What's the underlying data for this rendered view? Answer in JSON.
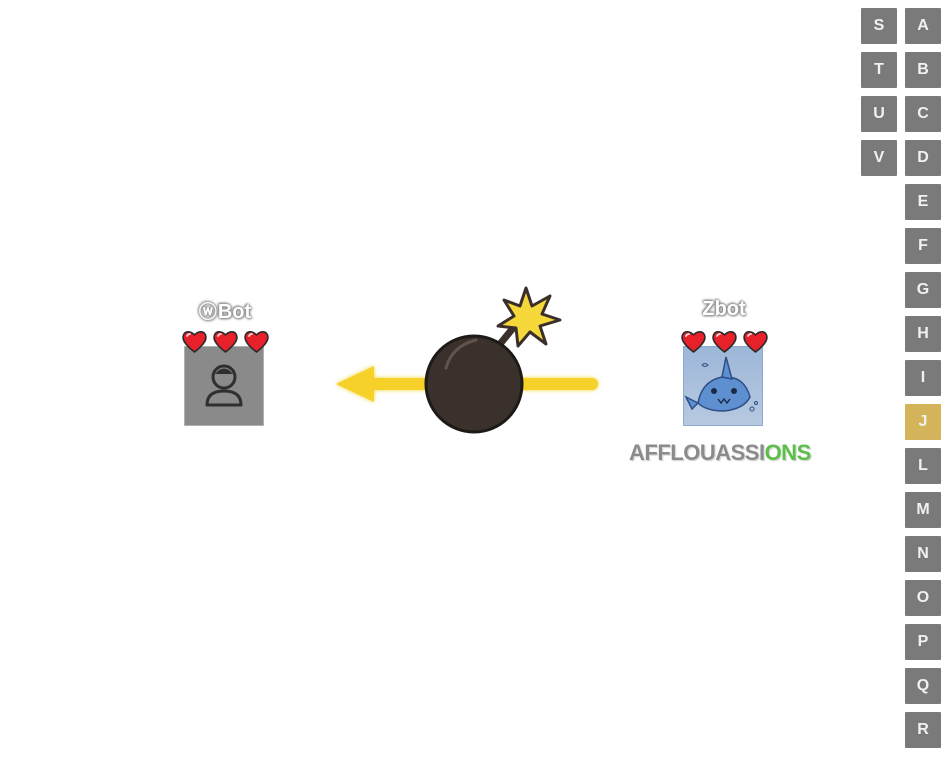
{
  "players": [
    {
      "id": "left",
      "name_prefix": "ⓦ",
      "name": "Bot",
      "lives": 3,
      "avatar_icon": "person-icon"
    },
    {
      "id": "right",
      "name_prefix": "Z",
      "name": "bot",
      "lives": 3,
      "avatar_icon": "shark-drawing",
      "current_word_prefix": "AFFLOUASSI",
      "current_word_suffix": "ONS"
    }
  ],
  "bomb": {
    "icon": "bomb-icon",
    "direction": "left"
  },
  "letter_keys": {
    "left_column": [
      "S",
      "T",
      "U",
      "V"
    ],
    "right_column": [
      "A",
      "B",
      "C",
      "D",
      "E",
      "F",
      "G",
      "H",
      "I",
      "J",
      "L",
      "M",
      "N",
      "O",
      "P",
      "Q",
      "R"
    ],
    "active_letter": "J"
  },
  "colors": {
    "key_default": "#7a7a7a",
    "key_active": "#d4b45a",
    "heart": "#e8202a",
    "word_typed": "#8b8b8b",
    "word_match": "#5cbf4a",
    "arrow": "#f5d12a"
  }
}
